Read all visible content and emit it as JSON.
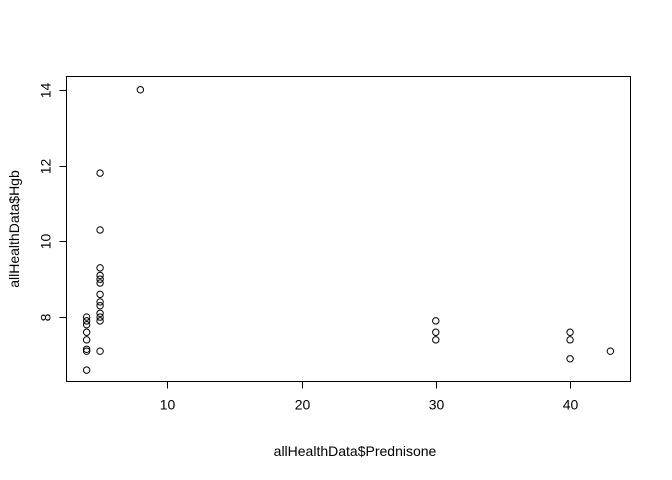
{
  "chart_data": {
    "type": "scatter",
    "title": "",
    "xlabel": "allHealthData$Prednisone",
    "ylabel": "allHealthData$Hgb",
    "xlim": [
      2.5,
      44.5
    ],
    "ylim": [
      6.3,
      14.35
    ],
    "x_ticks": [
      10,
      20,
      30,
      40
    ],
    "y_ticks": [
      8,
      10,
      12,
      14
    ],
    "x_tick_labels": [
      "10",
      "20",
      "30",
      "40"
    ],
    "y_tick_labels": [
      "8",
      "10",
      "12",
      "14"
    ],
    "grid": false,
    "legend": "none",
    "marker": "open-circle",
    "series": [
      {
        "points": [
          [
            4,
            6.6
          ],
          [
            4,
            7.1
          ],
          [
            4,
            7.15
          ],
          [
            4,
            7.4
          ],
          [
            4,
            7.6
          ],
          [
            4,
            7.8
          ],
          [
            4,
            7.9
          ],
          [
            4,
            8.0
          ],
          [
            5,
            7.1
          ],
          [
            5,
            7.9
          ],
          [
            5,
            8.0
          ],
          [
            5,
            8.1
          ],
          [
            5,
            8.3
          ],
          [
            5,
            8.4
          ],
          [
            5,
            8.6
          ],
          [
            5,
            8.9
          ],
          [
            5,
            9.0
          ],
          [
            5,
            9.1
          ],
          [
            5,
            9.3
          ],
          [
            5,
            10.3
          ],
          [
            5,
            11.8
          ],
          [
            8,
            14.0
          ],
          [
            30,
            7.4
          ],
          [
            30,
            7.6
          ],
          [
            30,
            7.9
          ],
          [
            40,
            6.9
          ],
          [
            40,
            7.4
          ],
          [
            40,
            7.6
          ],
          [
            43,
            7.1
          ]
        ]
      }
    ]
  }
}
